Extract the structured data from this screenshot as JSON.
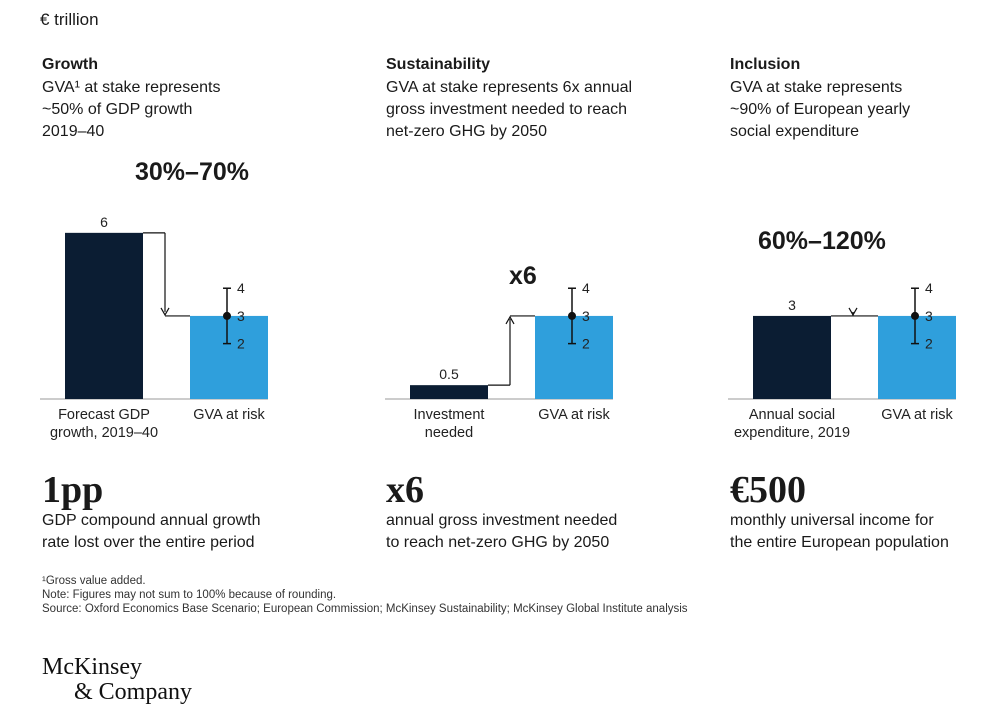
{
  "unit_label": "€ trillion",
  "panels": [
    {
      "title": "Growth",
      "subtitle_lines": [
        "GVA¹ at stake represents",
        "~50% of GDP growth",
        "2019–40"
      ],
      "range_label": "30%–70%",
      "big_value": "1pp",
      "big_desc_lines": [
        "GDP compound annual growth",
        "rate lost over the entire period"
      ]
    },
    {
      "title": "Sustainability",
      "subtitle_lines": [
        "GVA at stake represents 6x annual",
        "gross investment needed to reach",
        "net-zero GHG by 2050"
      ],
      "range_label": "x6",
      "big_value": "x6",
      "big_desc_lines": [
        "annual gross investment needed",
        "to reach net-zero GHG by 2050"
      ]
    },
    {
      "title": "Inclusion",
      "subtitle_lines": [
        "GVA at stake represents",
        "~90% of European yearly",
        "social expenditure"
      ],
      "range_label": "60%–120%",
      "big_value": "€500",
      "big_desc_lines": [
        "monthly universal income for",
        "the entire European population"
      ]
    }
  ],
  "chart_data": [
    {
      "type": "bar",
      "categories": [
        "Forecast GDP growth, 2019–40",
        "GVA at risk"
      ],
      "category_lines": [
        [
          "Forecast GDP",
          "growth, 2019–40"
        ],
        [
          "GVA at risk"
        ]
      ],
      "values": [
        6,
        3
      ],
      "value_labels": [
        "6",
        ""
      ],
      "error_range": {
        "low": 2,
        "mid": 3,
        "high": 4,
        "labels": [
          "2",
          "3",
          "4"
        ]
      },
      "colors": [
        "#0b1d33",
        "#2f9fdc"
      ],
      "arrow": "down",
      "ylim": [
        0,
        6.5
      ]
    },
    {
      "type": "bar",
      "categories": [
        "Investment needed",
        "GVA at risk"
      ],
      "category_lines": [
        [
          "Investment",
          "needed"
        ],
        [
          "GVA at risk"
        ]
      ],
      "values": [
        0.5,
        3
      ],
      "value_labels": [
        "0.5",
        ""
      ],
      "error_range": {
        "low": 2,
        "mid": 3,
        "high": 4,
        "labels": [
          "2",
          "3",
          "4"
        ]
      },
      "colors": [
        "#0b1d33",
        "#2f9fdc"
      ],
      "arrow": "up",
      "ylim": [
        0,
        6.5
      ]
    },
    {
      "type": "bar",
      "categories": [
        "Annual social expenditure, 2019",
        "GVA at risk"
      ],
      "category_lines": [
        [
          "Annual social",
          "expenditure, 2019"
        ],
        [
          "GVA at risk"
        ]
      ],
      "values": [
        3,
        3
      ],
      "value_labels": [
        "3",
        ""
      ],
      "error_range": {
        "low": 2,
        "mid": 3,
        "high": 4,
        "labels": [
          "2",
          "3",
          "4"
        ]
      },
      "colors": [
        "#0b1d33",
        "#2f9fdc"
      ],
      "arrow": "down",
      "ylim": [
        0,
        6.5
      ]
    }
  ],
  "footnotes": [
    "¹Gross value added.",
    "Note: Figures may not sum to 100% because of rounding.",
    "Source: Oxford Economics Base Scenario; European Commission; McKinsey Sustainability; McKinsey Global Institute analysis"
  ],
  "logo": {
    "line1": "McKinsey",
    "line2": "& Company"
  }
}
